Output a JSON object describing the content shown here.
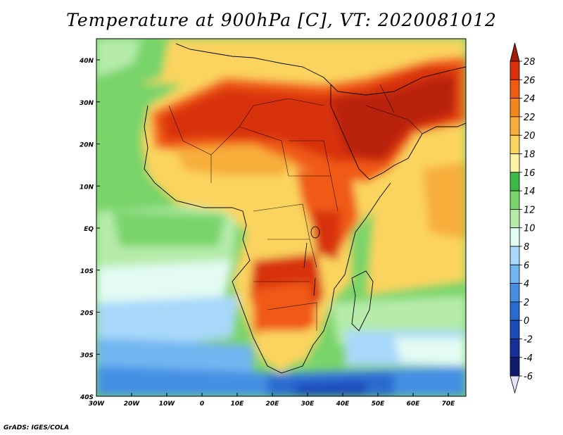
{
  "title": "Temperature at 900hPa [C], VT: 2020081012",
  "credit": "GrADS: IGES/COLA",
  "map": {
    "lat_labels": [
      "40N",
      "30N",
      "20N",
      "10N",
      "EQ",
      "10S",
      "20S",
      "30S",
      "40S"
    ],
    "lon_labels": [
      "30W",
      "20W",
      "10W",
      "0",
      "10E",
      "20E",
      "30E",
      "40E",
      "50E",
      "60E",
      "70E"
    ]
  },
  "colorbar": {
    "labels": [
      "28",
      "26",
      "24",
      "22",
      "20",
      "18",
      "16",
      "14",
      "12",
      "10",
      "8",
      "6",
      "4",
      "2",
      "0",
      "-2",
      "-4",
      "-6"
    ],
    "colors": [
      "#a01e0a",
      "#d8300a",
      "#f05a12",
      "#f5861a",
      "#f7ae3a",
      "#fbd45e",
      "#fff3a6",
      "#3cb846",
      "#79d46a",
      "#b6ebaa",
      "#e3fbf3",
      "#a8d8fa",
      "#72b6f1",
      "#4590e4",
      "#2a6bd0",
      "#1c4bbb",
      "#163099",
      "#121c6e"
    ]
  },
  "colors": {
    "hot": "#d8300a",
    "very_hot": "#b8240a",
    "warm": "#f5861a",
    "mild": "#fbd45e",
    "cool_green": "#79d46a",
    "cold": "#4590e4",
    "colder": "#2a6bd0",
    "coldest": "#1c4bbb"
  }
}
